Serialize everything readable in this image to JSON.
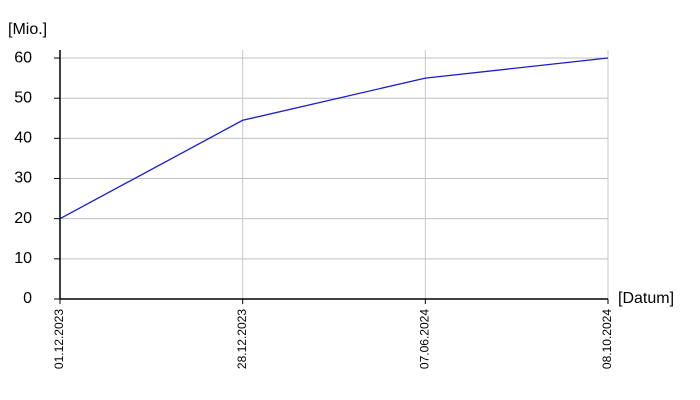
{
  "chart_data": {
    "type": "line",
    "y_label": "[Mio.]",
    "x_label": "[Datum]",
    "categories": [
      "01.12.2023",
      "28.12.2023",
      "07.06.2024",
      "08.10.2024"
    ],
    "series": [
      {
        "name": "Mio.",
        "color": "#1c1ccc",
        "values": [
          20,
          44.5,
          55,
          60
        ]
      }
    ],
    "ylim": [
      0,
      62
    ],
    "yticks": [
      0,
      10,
      20,
      30,
      40,
      50,
      60
    ],
    "grid": true
  }
}
